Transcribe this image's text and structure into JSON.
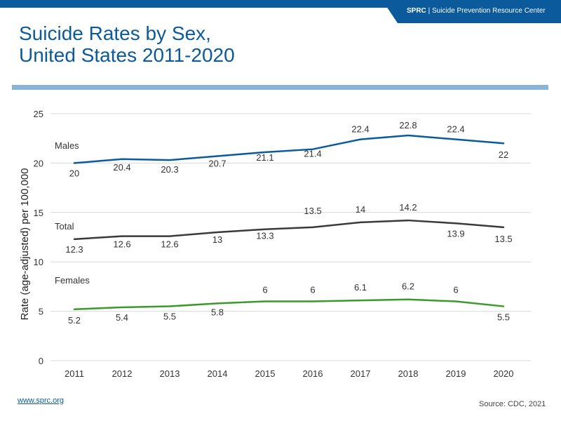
{
  "header": {
    "org_short": "SPRC",
    "separator": "|",
    "org_name": "Suicide Prevention Resource Center"
  },
  "title": {
    "line1": "Suicide Rates by Sex,",
    "line2": "United States 2011-2020"
  },
  "footer": {
    "link": "www.sprc.org",
    "source": "Source: CDC, 2021"
  },
  "colors": {
    "brand": "#0a5a9c",
    "males": "#0a5a9c",
    "total": "#3a3a3a",
    "females": "#3a9a2a"
  },
  "chart_data": {
    "type": "line",
    "title": "Suicide Rates by Sex, United States 2011-2020",
    "xlabel": "",
    "ylabel": "Rate (age-adjusted) per 100,000",
    "ylim": [
      0,
      25
    ],
    "yticks": [
      0,
      5,
      10,
      15,
      20,
      25
    ],
    "grid": true,
    "categories": [
      "2011",
      "2012",
      "2013",
      "2014",
      "2015",
      "2016",
      "2017",
      "2018",
      "2019",
      "2020"
    ],
    "series": [
      {
        "name": "Males",
        "color": "#0a5a9c",
        "values": [
          20,
          20.4,
          20.3,
          20.7,
          21.1,
          21.4,
          22.4,
          22.8,
          22.4,
          22
        ]
      },
      {
        "name": "Total",
        "color": "#3a3a3a",
        "values": [
          12.3,
          12.6,
          12.6,
          13,
          13.3,
          13.5,
          14,
          14.2,
          13.9,
          13.5
        ]
      },
      {
        "name": "Females",
        "color": "#3a9a2a",
        "values": [
          5.2,
          5.4,
          5.5,
          5.8,
          6,
          6,
          6.1,
          6.2,
          6,
          5.5
        ]
      }
    ]
  }
}
